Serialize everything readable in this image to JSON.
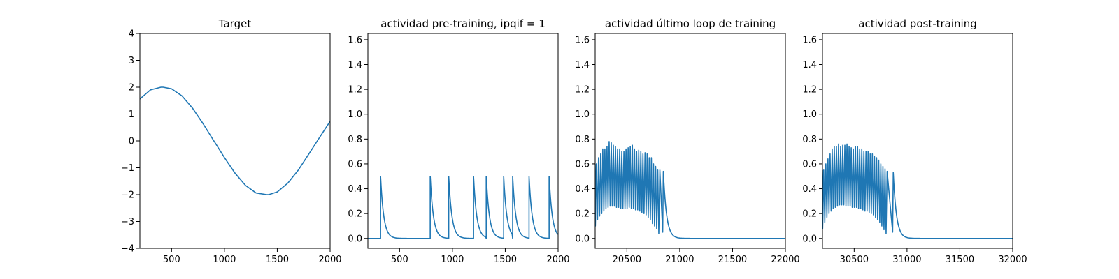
{
  "figure": {
    "background": "#ffffff",
    "line_color": "#1f77b4"
  },
  "chart_data": [
    {
      "type": "line",
      "title": "Target",
      "xlabel": "",
      "ylabel": "",
      "xlim": [
        200,
        2000
      ],
      "ylim": [
        -4,
        4
      ],
      "xticks": [
        500,
        1000,
        1500,
        2000
      ],
      "yticks": [
        -4,
        -3,
        -2,
        -1,
        0,
        1,
        2,
        3,
        4
      ],
      "xtick_labels": [
        "500",
        "1000",
        "1500",
        "2000"
      ],
      "ytick_labels": [
        "−4",
        "−3",
        "−2",
        "−1",
        "0",
        "1",
        "2",
        "3",
        "4"
      ],
      "series": [
        {
          "x": [
            200,
            300,
            400,
            420,
            500,
            600,
            700,
            800,
            900,
            920,
            1000,
            1100,
            1200,
            1300,
            1400,
            1420,
            1500,
            1600,
            1700,
            1800,
            1900,
            1920,
            2000
          ],
          "y": [
            1.56,
            1.9,
            2.0,
            2.0,
            1.94,
            1.67,
            1.21,
            0.63,
            0.0,
            -0.12,
            -0.62,
            -1.2,
            -1.66,
            -1.94,
            -2.0,
            -2.0,
            -1.9,
            -1.57,
            -1.08,
            -0.48,
            0.13,
            0.25,
            0.73
          ]
        }
      ]
    },
    {
      "type": "line",
      "title": "actividad pre-training, ipqif = 1",
      "xlabel": "",
      "ylabel": "",
      "xlim": [
        200,
        2000
      ],
      "ylim": [
        -0.08,
        1.65
      ],
      "xticks": [
        500,
        1000,
        1500,
        2000
      ],
      "yticks": [
        0.0,
        0.2,
        0.4,
        0.6,
        0.8,
        1.0,
        1.2,
        1.4,
        1.6
      ],
      "xtick_labels": [
        "500",
        "1000",
        "1500",
        "2000"
      ],
      "ytick_labels": [
        "0.0",
        "0.2",
        "0.4",
        "0.6",
        "0.8",
        "1.0",
        "1.2",
        "1.4",
        "1.6"
      ],
      "series": [
        {
          "generator": "spikes",
          "spike_times": [
            320,
            790,
            965,
            1200,
            1320,
            1485,
            1570,
            1725,
            1915
          ],
          "peaks": [
            0.5,
            0.5,
            0.5,
            0.5,
            0.5,
            0.5,
            0.5,
            0.5,
            0.5
          ],
          "decay": 30
        }
      ]
    },
    {
      "type": "line",
      "title": "actividad último loop de training",
      "xlabel": "",
      "ylabel": "",
      "xlim": [
        20200,
        22000
      ],
      "ylim": [
        -0.08,
        1.65
      ],
      "xticks": [
        20500,
        21000,
        21500,
        22000
      ],
      "yticks": [
        0.0,
        0.2,
        0.4,
        0.6,
        0.8,
        1.0,
        1.2,
        1.4,
        1.6
      ],
      "xtick_labels": [
        "20500",
        "21000",
        "21500",
        "22000"
      ],
      "ytick_labels": [
        "0.0",
        "0.2",
        "0.4",
        "0.6",
        "0.8",
        "1.0",
        "1.2",
        "1.4",
        "1.6"
      ],
      "series": [
        {
          "generator": "burst",
          "start": 20200,
          "start_value": 0.6,
          "period": 20,
          "n_cycles": 31,
          "peaks": [
            0.6,
            0.65,
            0.68,
            0.72,
            0.72,
            0.74,
            0.78,
            0.77,
            0.75,
            0.74,
            0.72,
            0.72,
            0.7,
            0.7,
            0.72,
            0.73,
            0.74,
            0.75,
            0.72,
            0.7,
            0.71,
            0.7,
            0.68,
            0.69,
            0.68,
            0.65,
            0.65,
            0.6,
            0.58,
            0.55,
            0.55
          ],
          "troughs": [
            0.1,
            0.15,
            0.18,
            0.2,
            0.22,
            0.24,
            0.25,
            0.26,
            0.26,
            0.26,
            0.25,
            0.25,
            0.24,
            0.24,
            0.24,
            0.24,
            0.25,
            0.24,
            0.24,
            0.23,
            0.23,
            0.22,
            0.21,
            0.2,
            0.19,
            0.17,
            0.15,
            0.12,
            0.1,
            0.08,
            0.04
          ],
          "last_peak": {
            "x": 20845,
            "y": 0.54
          },
          "decay": 30,
          "decay_until": 22000
        }
      ]
    },
    {
      "type": "line",
      "title": "actividad post-training",
      "xlabel": "",
      "ylabel": "",
      "xlim": [
        30200,
        32000
      ],
      "ylim": [
        -0.08,
        1.65
      ],
      "xticks": [
        30500,
        31000,
        31500,
        32000
      ],
      "yticks": [
        0.0,
        0.2,
        0.4,
        0.6,
        0.8,
        1.0,
        1.2,
        1.4,
        1.6
      ],
      "xtick_labels": [
        "30500",
        "31000",
        "31500",
        "32000"
      ],
      "ytick_labels": [
        "0.0",
        "0.2",
        "0.4",
        "0.6",
        "0.8",
        "1.0",
        "1.2",
        "1.4",
        "1.6"
      ],
      "series": [
        {
          "generator": "burst",
          "start": 30200,
          "start_value": 0.55,
          "period": 20,
          "n_cycles": 31,
          "peaks": [
            0.55,
            0.6,
            0.64,
            0.68,
            0.72,
            0.74,
            0.74,
            0.76,
            0.74,
            0.75,
            0.75,
            0.76,
            0.74,
            0.73,
            0.72,
            0.74,
            0.74,
            0.72,
            0.72,
            0.7,
            0.7,
            0.7,
            0.68,
            0.68,
            0.66,
            0.65,
            0.63,
            0.6,
            0.58,
            0.56,
            0.54
          ],
          "troughs": [
            0.08,
            0.13,
            0.17,
            0.2,
            0.22,
            0.24,
            0.25,
            0.26,
            0.27,
            0.27,
            0.27,
            0.26,
            0.26,
            0.26,
            0.25,
            0.25,
            0.25,
            0.24,
            0.24,
            0.23,
            0.22,
            0.22,
            0.21,
            0.2,
            0.19,
            0.17,
            0.15,
            0.13,
            0.1,
            0.07,
            0.04
          ],
          "last_peak": {
            "x": 30870,
            "y": 0.53
          },
          "decay": 30,
          "decay_until": 32000
        }
      ]
    }
  ]
}
